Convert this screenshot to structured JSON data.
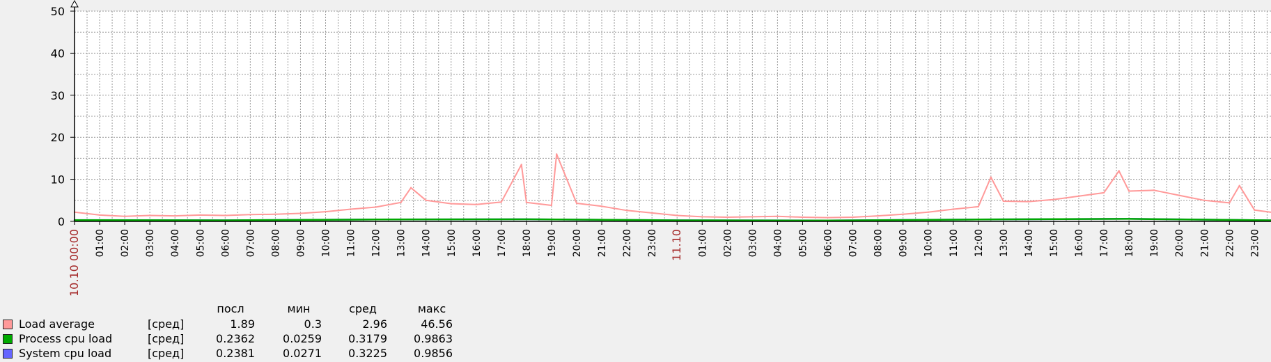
{
  "chart_data": {
    "type": "line",
    "ylim": [
      0,
      50
    ],
    "y_ticks": [
      0,
      10,
      20,
      30,
      40,
      50
    ],
    "x_range_hours": [
      0,
      48
    ],
    "x_tick_labels": [
      "10.10 00:00",
      "01:00",
      "02:00",
      "03:00",
      "04:00",
      "05:00",
      "06:00",
      "07:00",
      "08:00",
      "09:00",
      "10:00",
      "11:00",
      "12:00",
      "13:00",
      "14:00",
      "15:00",
      "16:00",
      "17:00",
      "18:00",
      "19:00",
      "20:00",
      "21:00",
      "22:00",
      "23:00",
      "11.10",
      "01:00",
      "02:00",
      "03:00",
      "04:00",
      "05:00",
      "06:00",
      "07:00",
      "08:00",
      "09:00",
      "10:00",
      "11:00",
      "12:00",
      "13:00",
      "14:00",
      "15:00",
      "16:00",
      "17:00",
      "18:00",
      "19:00",
      "20:00",
      "21:00",
      "22:00",
      "23:00"
    ],
    "x_tick_highlight": [
      0,
      24
    ],
    "grid": true,
    "legend_placement": "bottom-left",
    "series": [
      {
        "name": "Load average",
        "color": "#ff9999",
        "x": [
          0,
          1,
          2,
          3,
          4,
          5,
          6,
          7,
          8,
          9,
          10,
          11,
          12,
          13,
          13.4,
          14,
          15,
          16,
          17,
          17.8,
          18,
          19,
          19.2,
          20,
          21,
          22,
          23,
          24,
          25,
          26,
          27,
          28,
          29,
          30,
          31,
          32,
          33,
          34,
          35,
          36,
          36.5,
          37,
          38,
          39,
          40,
          41,
          41.6,
          42,
          43,
          44,
          45,
          46,
          46.4,
          47,
          48
        ],
        "y": [
          2.2,
          1.5,
          1.2,
          1.4,
          1.3,
          1.5,
          1.4,
          1.6,
          1.7,
          1.9,
          2.3,
          2.9,
          3.4,
          4.5,
          8.0,
          5.0,
          4.2,
          4.0,
          4.6,
          13.5,
          4.5,
          3.8,
          16.0,
          4.3,
          3.6,
          2.6,
          2.0,
          1.4,
          1.1,
          1.0,
          1.1,
          1.2,
          1.0,
          0.9,
          1.0,
          1.3,
          1.7,
          2.2,
          2.9,
          3.5,
          10.5,
          4.8,
          4.7,
          5.2,
          6.0,
          6.8,
          12.0,
          7.2,
          7.4,
          6.2,
          5.0,
          4.4,
          8.5,
          2.7,
          1.89
        ]
      },
      {
        "name": "Process cpu load",
        "color": "#00aa00",
        "x": [
          0,
          6,
          12,
          18,
          24,
          30,
          36,
          42,
          48
        ],
        "y": [
          0.3,
          0.25,
          0.45,
          0.5,
          0.25,
          0.2,
          0.45,
          0.6,
          0.2362
        ]
      },
      {
        "name": "System cpu load",
        "color": "#6666ff",
        "x": [
          0,
          6,
          12,
          18,
          24,
          30,
          36,
          42,
          48
        ],
        "y": [
          0.32,
          0.26,
          0.47,
          0.52,
          0.27,
          0.22,
          0.47,
          0.62,
          0.2381
        ]
      }
    ]
  },
  "legend": {
    "headers": {
      "last": "посл",
      "min": "мин",
      "avg": "сред",
      "max": "макс"
    },
    "items": [
      {
        "name": "Load average",
        "func": "[сред]",
        "last": "1.89",
        "min": "0.3",
        "avg": "2.96",
        "max": "46.56",
        "color": "#ff9999"
      },
      {
        "name": "Process cpu load",
        "func": "[сред]",
        "last": "0.2362",
        "min": "0.0259",
        "avg": "0.3179",
        "max": "0.9863",
        "color": "#00aa00"
      },
      {
        "name": "System cpu load",
        "func": "[сред]",
        "last": "0.2381",
        "min": "0.0271",
        "avg": "0.3225",
        "max": "0.9856",
        "color": "#6666ff"
      }
    ]
  }
}
